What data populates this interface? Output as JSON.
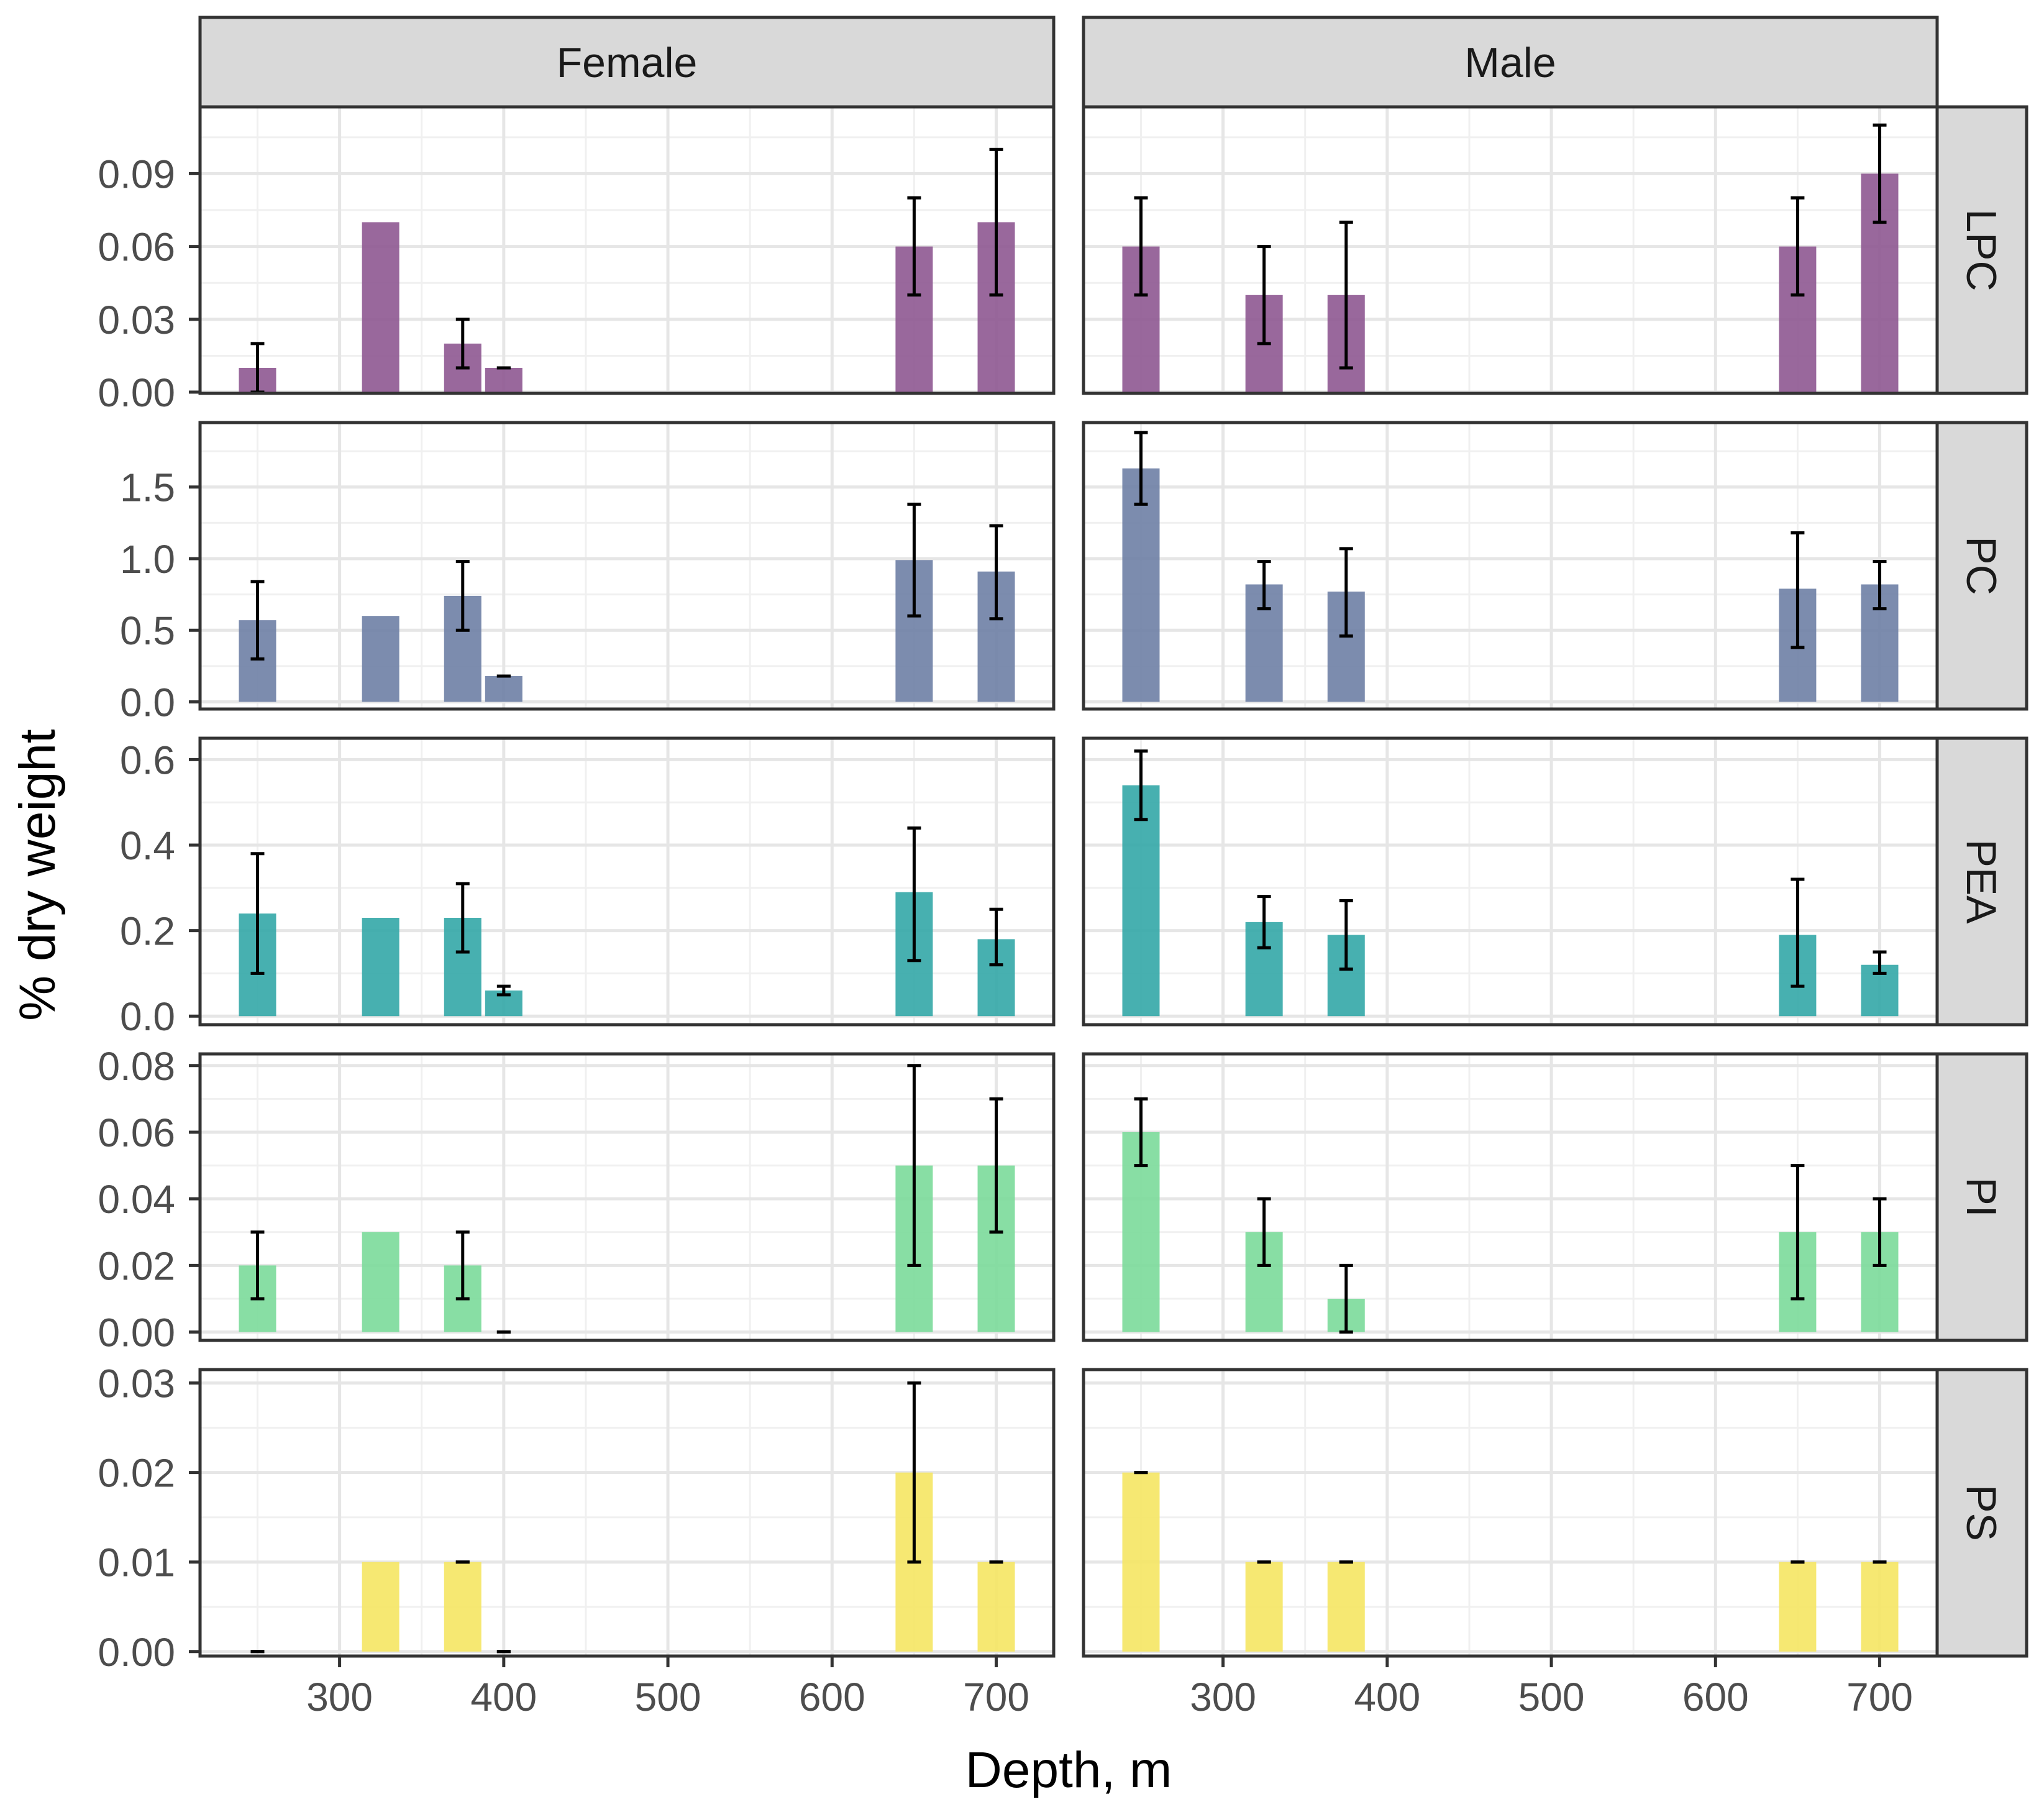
{
  "chart_data": {
    "type": "bar",
    "xlabel": "Depth, m",
    "ylabel": "% dry weight",
    "x_ticks": [
      300,
      400,
      500,
      600,
      700
    ],
    "x_minor": [
      250,
      350,
      450,
      550,
      650
    ],
    "xlim": [
      215,
      735
    ],
    "grid": true,
    "legend": "none",
    "columns": [
      "Female",
      "Male"
    ],
    "depths": [
      250,
      325,
      375,
      400,
      650,
      700
    ],
    "rows": [
      {
        "name": "LPC",
        "color": "#8E5891",
        "ylim": [
          -0.0005,
          0.1175
        ],
        "yticks": [
          0.0,
          0.03,
          0.06,
          0.09
        ],
        "ytick_labels": [
          "0.00",
          "0.03",
          "0.06",
          "0.09"
        ],
        "ygrid_minor": [
          0.015,
          0.045,
          0.075,
          0.105
        ],
        "panels": {
          "Female": [
            {
              "x": 250,
              "value": 0.01,
              "err": [
                0.0,
                0.02
              ]
            },
            {
              "x": 325,
              "value": 0.07,
              "err": null
            },
            {
              "x": 375,
              "value": 0.02,
              "err": [
                0.01,
                0.03
              ]
            },
            {
              "x": 400,
              "value": 0.01,
              "err": [
                0.01,
                0.01
              ]
            },
            {
              "x": 650,
              "value": 0.06,
              "err": [
                0.04,
                0.08
              ]
            },
            {
              "x": 700,
              "value": 0.07,
              "err": [
                0.04,
                0.1
              ]
            }
          ],
          "Male": [
            {
              "x": 250,
              "value": 0.06,
              "err": [
                0.04,
                0.08
              ]
            },
            {
              "x": 325,
              "value": 0.04,
              "err": [
                0.02,
                0.06
              ]
            },
            {
              "x": 375,
              "value": 0.04,
              "err": [
                0.01,
                0.07
              ]
            },
            {
              "x": 650,
              "value": 0.06,
              "err": [
                0.04,
                0.08
              ]
            },
            {
              "x": 700,
              "value": 0.09,
              "err": [
                0.07,
                0.11
              ]
            }
          ]
        }
      },
      {
        "name": "PC",
        "color": "#6E7FA5",
        "ylim": [
          -0.05,
          1.95
        ],
        "yticks": [
          0.0,
          0.5,
          1.0,
          1.5
        ],
        "ytick_labels": [
          "0.0",
          "0.5",
          "1.0",
          "1.5"
        ],
        "ygrid_minor": [
          0.25,
          0.75,
          1.25,
          1.75
        ],
        "panels": {
          "Female": [
            {
              "x": 250,
              "value": 0.57,
              "err": [
                0.3,
                0.84
              ]
            },
            {
              "x": 325,
              "value": 0.6,
              "err": null
            },
            {
              "x": 375,
              "value": 0.74,
              "err": [
                0.5,
                0.98
              ]
            },
            {
              "x": 400,
              "value": 0.18,
              "err": [
                0.18,
                0.18
              ]
            },
            {
              "x": 650,
              "value": 0.99,
              "err": [
                0.6,
                1.38
              ]
            },
            {
              "x": 700,
              "value": 0.91,
              "err": [
                0.58,
                1.23
              ]
            }
          ],
          "Male": [
            {
              "x": 250,
              "value": 1.63,
              "err": [
                1.38,
                1.88
              ]
            },
            {
              "x": 325,
              "value": 0.82,
              "err": [
                0.65,
                0.98
              ]
            },
            {
              "x": 375,
              "value": 0.77,
              "err": [
                0.46,
                1.07
              ]
            },
            {
              "x": 650,
              "value": 0.79,
              "err": [
                0.38,
                1.18
              ]
            },
            {
              "x": 700,
              "value": 0.82,
              "err": [
                0.65,
                0.98
              ]
            }
          ]
        }
      },
      {
        "name": "PEA",
        "color": "#33A7A7",
        "ylim": [
          -0.02,
          0.65
        ],
        "yticks": [
          0.0,
          0.2,
          0.4,
          0.6
        ],
        "ytick_labels": [
          "0.0",
          "0.2",
          "0.4",
          "0.6"
        ],
        "ygrid_minor": [
          0.1,
          0.3,
          0.5
        ],
        "panels": {
          "Female": [
            {
              "x": 250,
              "value": 0.24,
              "err": [
                0.1,
                0.38
              ]
            },
            {
              "x": 325,
              "value": 0.23,
              "err": null
            },
            {
              "x": 375,
              "value": 0.23,
              "err": [
                0.15,
                0.31
              ]
            },
            {
              "x": 400,
              "value": 0.06,
              "err": [
                0.05,
                0.07
              ]
            },
            {
              "x": 650,
              "value": 0.29,
              "err": [
                0.13,
                0.44
              ]
            },
            {
              "x": 700,
              "value": 0.18,
              "err": [
                0.12,
                0.25
              ]
            }
          ],
          "Male": [
            {
              "x": 250,
              "value": 0.54,
              "err": [
                0.46,
                0.62
              ]
            },
            {
              "x": 325,
              "value": 0.22,
              "err": [
                0.16,
                0.28
              ]
            },
            {
              "x": 375,
              "value": 0.19,
              "err": [
                0.11,
                0.27
              ]
            },
            {
              "x": 650,
              "value": 0.19,
              "err": [
                0.07,
                0.32
              ]
            },
            {
              "x": 700,
              "value": 0.12,
              "err": [
                0.1,
                0.15
              ]
            }
          ]
        }
      },
      {
        "name": "PI",
        "color": "#7BDA9A",
        "ylim": [
          -0.0025,
          0.0835
        ],
        "yticks": [
          0.0,
          0.02,
          0.04,
          0.06,
          0.08
        ],
        "ytick_labels": [
          "0.00",
          "0.02",
          "0.04",
          "0.06",
          "0.08"
        ],
        "ygrid_minor": [
          0.01,
          0.03,
          0.05,
          0.07
        ],
        "panels": {
          "Female": [
            {
              "x": 250,
              "value": 0.02,
              "err": [
                0.01,
                0.03
              ]
            },
            {
              "x": 325,
              "value": 0.03,
              "err": null
            },
            {
              "x": 375,
              "value": 0.02,
              "err": [
                0.01,
                0.03
              ]
            },
            {
              "x": 400,
              "value": 0.0,
              "err": [
                0.0,
                0.0
              ]
            },
            {
              "x": 650,
              "value": 0.05,
              "err": [
                0.02,
                0.08
              ]
            },
            {
              "x": 700,
              "value": 0.05,
              "err": [
                0.03,
                0.07
              ]
            }
          ],
          "Male": [
            {
              "x": 250,
              "value": 0.06,
              "err": [
                0.05,
                0.07
              ]
            },
            {
              "x": 325,
              "value": 0.03,
              "err": [
                0.02,
                0.04
              ]
            },
            {
              "x": 375,
              "value": 0.01,
              "err": [
                0.0,
                0.02
              ]
            },
            {
              "x": 650,
              "value": 0.03,
              "err": [
                0.01,
                0.05
              ]
            },
            {
              "x": 700,
              "value": 0.03,
              "err": [
                0.02,
                0.04
              ]
            }
          ]
        }
      },
      {
        "name": "PS",
        "color": "#F5E663",
        "ylim": [
          -0.0005,
          0.0315
        ],
        "yticks": [
          0.0,
          0.01,
          0.02,
          0.03
        ],
        "ytick_labels": [
          "0.00",
          "0.01",
          "0.02",
          "0.03"
        ],
        "ygrid_minor": [
          0.005,
          0.015,
          0.025
        ],
        "panels": {
          "Female": [
            {
              "x": 250,
              "value": 0.0,
              "err": [
                0.0,
                0.0
              ]
            },
            {
              "x": 325,
              "value": 0.01,
              "err": null
            },
            {
              "x": 375,
              "value": 0.01,
              "err": [
                0.01,
                0.01
              ]
            },
            {
              "x": 400,
              "value": 0.0,
              "err": [
                0.0,
                0.0
              ]
            },
            {
              "x": 650,
              "value": 0.02,
              "err": [
                0.01,
                0.03
              ]
            },
            {
              "x": 700,
              "value": 0.01,
              "err": [
                0.01,
                0.01
              ]
            }
          ],
          "Male": [
            {
              "x": 250,
              "value": 0.02,
              "err": [
                0.02,
                0.02
              ]
            },
            {
              "x": 325,
              "value": 0.01,
              "err": [
                0.01,
                0.01
              ]
            },
            {
              "x": 375,
              "value": 0.01,
              "err": [
                0.01,
                0.01
              ]
            },
            {
              "x": 650,
              "value": 0.01,
              "err": [
                0.01,
                0.01
              ]
            },
            {
              "x": 700,
              "value": 0.01,
              "err": [
                0.01,
                0.01
              ]
            }
          ]
        }
      }
    ]
  }
}
